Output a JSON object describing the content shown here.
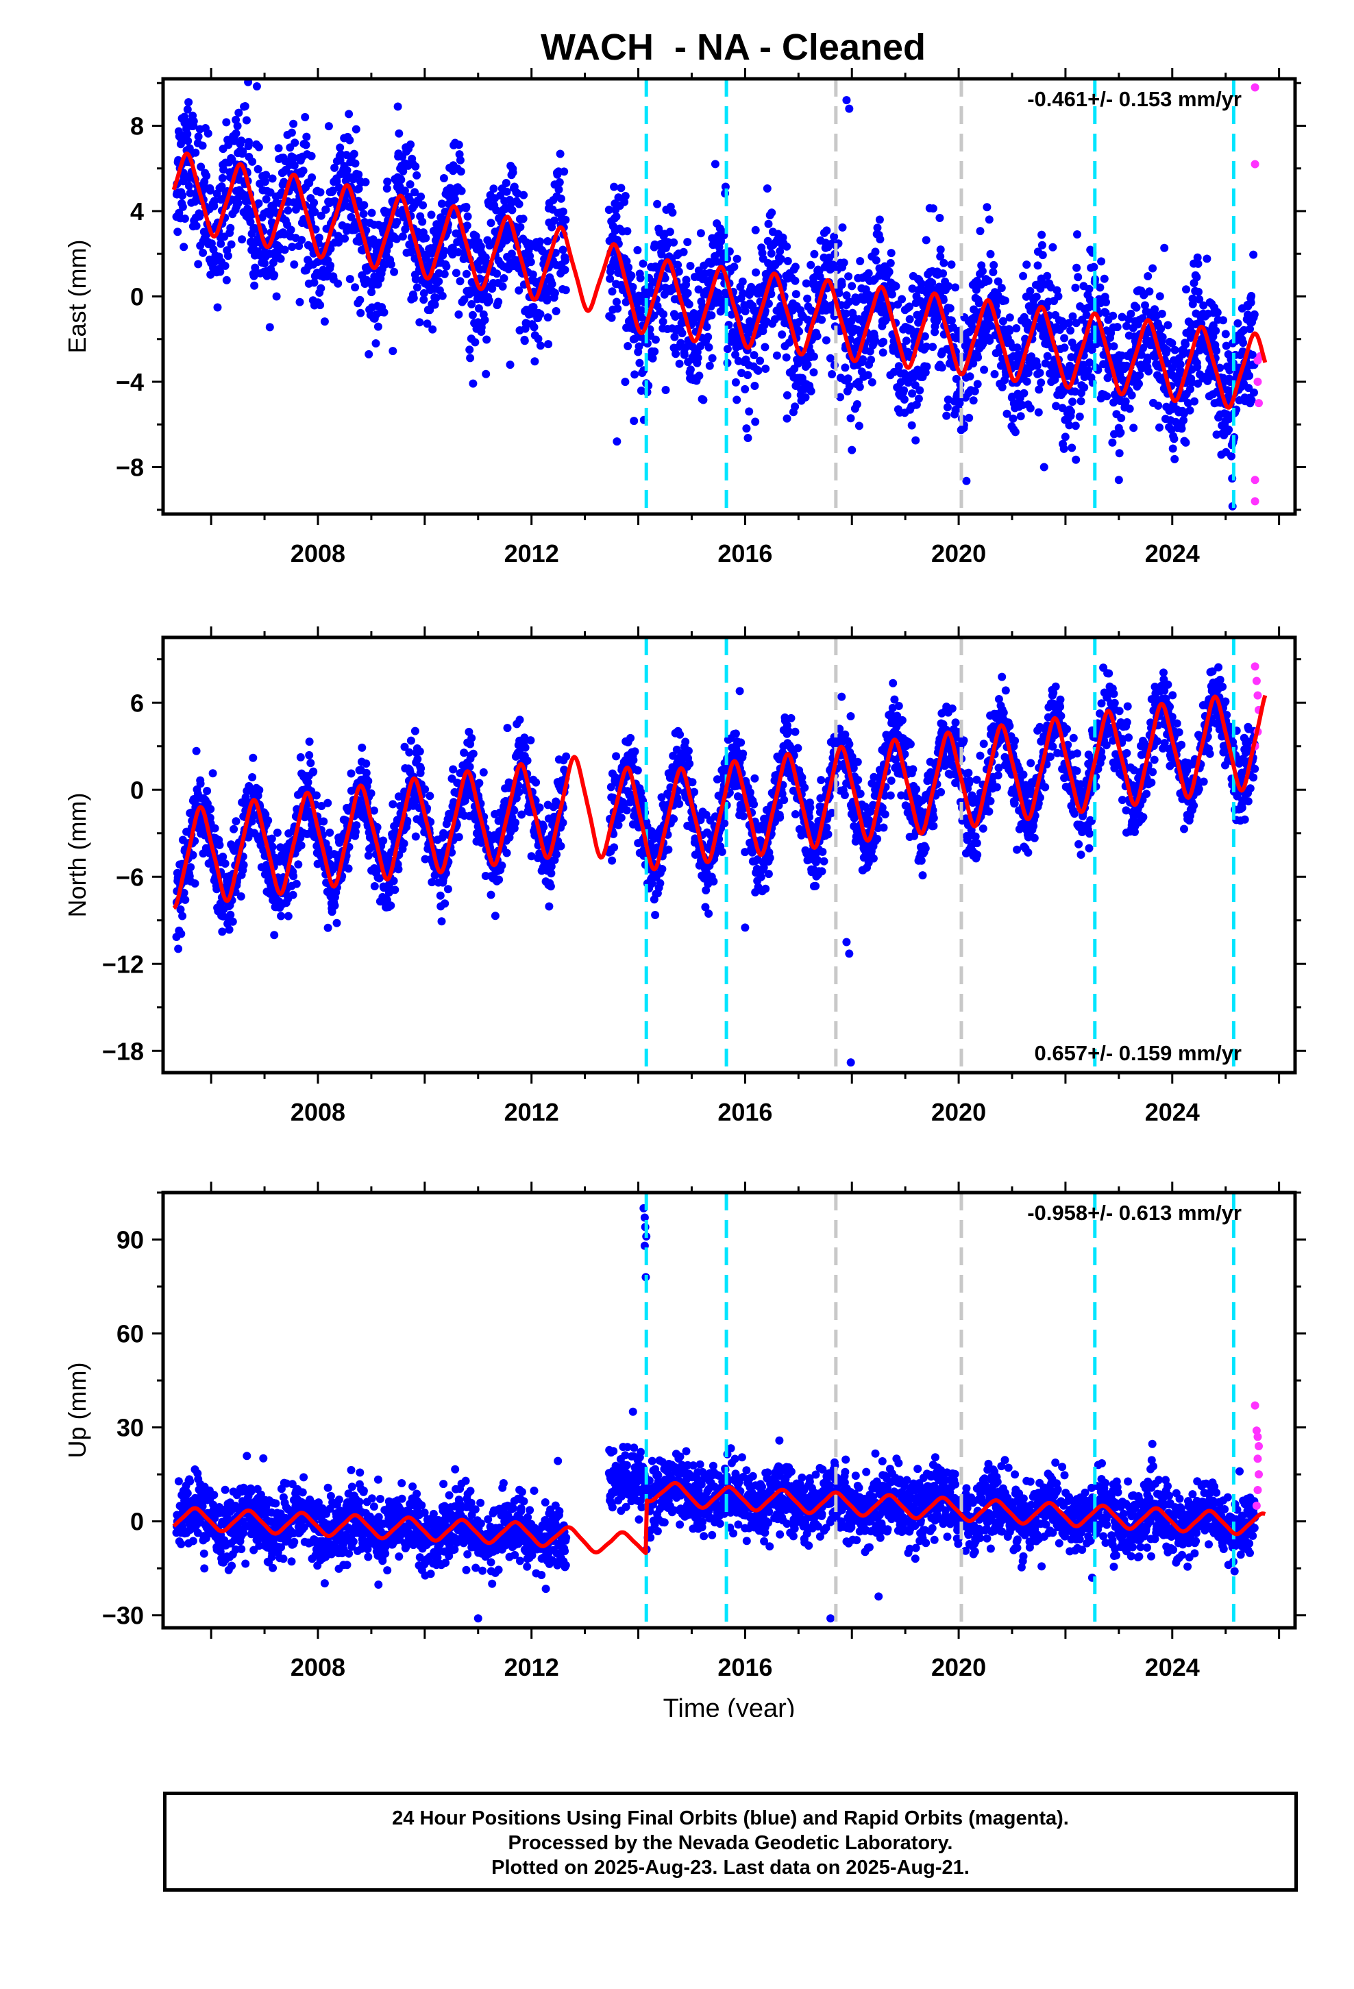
{
  "title": "WACH  - NA - Cleaned",
  "colors": {
    "final_orbits": "#0000ff",
    "rapid_orbits": "#ff33ff",
    "model": "#ff0000",
    "equipment_change": "#00e5ff",
    "earthquake": "#c8c8c8"
  },
  "chart_data": [
    {
      "type": "scatter",
      "panel": "east",
      "ylabel": "East (mm)",
      "xlabel": "",
      "xlim": [
        2005.1,
        2026.3
      ],
      "ylim": [
        -10.2,
        10.2
      ],
      "xticks": [
        2008,
        2012,
        2016,
        2020,
        2024
      ],
      "yticks": [
        8,
        4,
        0,
        -4,
        -8
      ],
      "rate_annotation": "-0.461+/- 0.153 mm/yr",
      "annotation_position": "top-right",
      "cyan_lines": [
        2014.15,
        2015.65,
        2022.55,
        2025.15
      ],
      "gray_lines": [
        2017.7,
        2020.05
      ],
      "model": {
        "trend": [
          [
            2005.3,
            5.0
          ],
          [
            2013.0,
            1.2
          ],
          [
            2014.15,
            0.0
          ],
          [
            2025.7,
            -3.6
          ]
        ],
        "annual_amplitude": 1.3,
        "annual_phase": 0.3
      },
      "scatter_sd": 1.6,
      "outliers": [
        [
          2017.9,
          9.2
        ],
        [
          2017.95,
          8.8
        ],
        [
          2013.6,
          -6.8
        ],
        [
          2018.0,
          -7.2
        ],
        [
          2023.0,
          -8.6
        ],
        [
          2021.6,
          -8.0
        ],
        [
          2011.6,
          -3.2
        ]
      ],
      "rapid": [
        [
          2025.55,
          9.8
        ],
        [
          2025.55,
          6.2
        ],
        [
          2025.55,
          -8.6
        ],
        [
          2025.55,
          -9.6
        ],
        [
          2025.6,
          -3.0
        ],
        [
          2025.6,
          -4.0
        ],
        [
          2025.62,
          -5.0
        ],
        [
          2025.65,
          -2.8
        ]
      ]
    },
    {
      "type": "scatter",
      "panel": "north",
      "ylabel": "North (mm)",
      "xlabel": "",
      "xlim": [
        2005.1,
        2026.3
      ],
      "ylim": [
        -19.5,
        10.5
      ],
      "xticks": [
        2008,
        2012,
        2016,
        2020,
        2024
      ],
      "yticks": [
        6,
        0,
        -6,
        -12,
        -18
      ],
      "rate_annotation": "0.657+/- 0.159 mm/yr",
      "annotation_position": "bottom-right",
      "cyan_lines": [
        2014.15,
        2015.65,
        2022.55,
        2025.15
      ],
      "gray_lines": [
        2017.7,
        2020.05
      ],
      "model": {
        "trend": [
          [
            2005.3,
            -4.8
          ],
          [
            2013.0,
            -1.0
          ],
          [
            2014.15,
            -2.2
          ],
          [
            2025.7,
            3.5
          ]
        ],
        "annual_amplitude": 2.4,
        "annual_phase": 0.55
      },
      "scatter_sd": 1.4,
      "outliers": [
        [
          2017.9,
          -10.5
        ],
        [
          2017.95,
          -11.3
        ],
        [
          2017.98,
          -18.8
        ],
        [
          2016.0,
          -9.5
        ],
        [
          2015.9,
          6.8
        ]
      ],
      "rapid": [
        [
          2025.55,
          8.5
        ],
        [
          2025.58,
          7.5
        ],
        [
          2025.6,
          6.5
        ],
        [
          2025.62,
          5.5
        ],
        [
          2025.6,
          4.0
        ],
        [
          2025.55,
          3.0
        ]
      ]
    },
    {
      "type": "scatter",
      "panel": "up",
      "ylabel": "Up (mm)",
      "xlabel": "Time (year)",
      "xlim": [
        2005.1,
        2026.3
      ],
      "ylim": [
        -34,
        105
      ],
      "xticks": [
        2008,
        2012,
        2016,
        2020,
        2024
      ],
      "yticks": [
        90,
        60,
        30,
        0,
        -30
      ],
      "rate_annotation": "-0.958+/- 0.613 mm/yr",
      "annotation_position": "top-right",
      "cyan_lines": [
        2014.15,
        2015.65,
        2022.55,
        2025.15
      ],
      "gray_lines": [
        2017.7,
        2020.05
      ],
      "model": {
        "trend": [
          [
            2005.3,
            1.0
          ],
          [
            2012.0,
            -4.0
          ],
          [
            2013.5,
            -7.0
          ],
          [
            2014.15,
            -7.0
          ],
          [
            2014.16,
            10.0
          ],
          [
            2015.0,
            8.0
          ],
          [
            2025.7,
            -1.0
          ]
        ],
        "annual_amplitude": 2.5,
        "annual_phase": 0.45
      },
      "scatter_sd": 5.5,
      "outliers": [
        [
          2014.1,
          100
        ],
        [
          2014.12,
          97
        ],
        [
          2014.13,
          94
        ],
        [
          2014.15,
          91
        ],
        [
          2014.12,
          88
        ],
        [
          2014.14,
          78
        ],
        [
          2013.9,
          35
        ],
        [
          2017.6,
          -31
        ],
        [
          2011.0,
          -31
        ],
        [
          2018.5,
          -24
        ],
        [
          2022.5,
          -18
        ]
      ],
      "rapid": [
        [
          2025.55,
          37
        ],
        [
          2025.58,
          29
        ],
        [
          2025.6,
          27
        ],
        [
          2025.62,
          24
        ],
        [
          2025.6,
          20
        ],
        [
          2025.62,
          15
        ],
        [
          2025.6,
          10
        ],
        [
          2025.58,
          5
        ]
      ]
    }
  ],
  "footer": {
    "line1": "24 Hour Positions Using Final Orbits (blue) and Rapid Orbits (magenta).",
    "line2": "Processed by the Nevada Geodetic Laboratory.",
    "line3": "Plotted on 2025-Aug-23. Last data on 2025-Aug-21."
  }
}
